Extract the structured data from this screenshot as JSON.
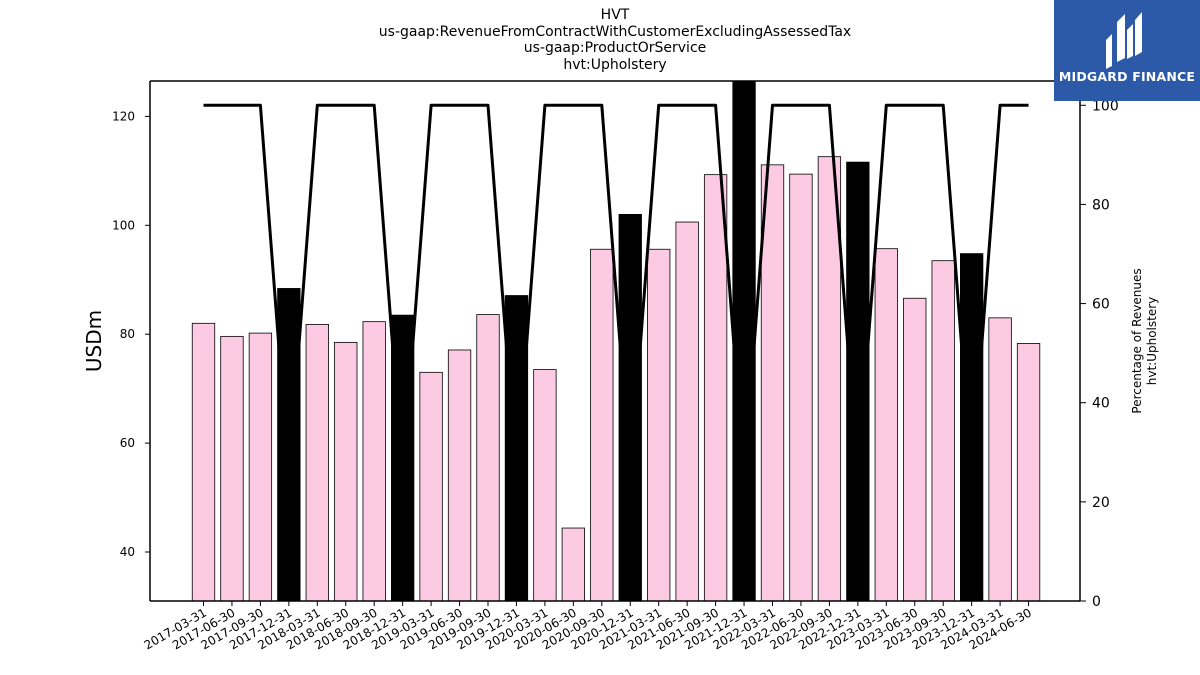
{
  "header": {
    "line1": "HVT",
    "line2": "us-gaap:RevenueFromContractWithCustomerExcludingAssessedTax",
    "line3": "us-gaap:ProductOrService",
    "line4": "hvt:Upholstery"
  },
  "logo": {
    "text": "MIDGARD FINANCE",
    "color": "#2c5aa8"
  },
  "chart_data": {
    "type": "bar",
    "title": "HVT us-gaap:RevenueFromContractWithCustomerExcludingAssessedTax us-gaap:ProductOrService hvt:Upholstery",
    "ylabel": "USDm",
    "y2label_line1": "Percentage of Revenues",
    "y2label_line2": "hvt:Upholstery",
    "ylim": [
      31,
      126.5
    ],
    "y2lim": [
      0,
      104.9
    ],
    "yticks": [
      40,
      60,
      80,
      100,
      120
    ],
    "y2ticks": [
      0,
      20,
      40,
      60,
      80,
      100
    ],
    "categories": [
      "2017-03-31",
      "2017-06-30",
      "2017-09-30",
      "2017-12-31",
      "2018-03-31",
      "2018-06-30",
      "2018-09-30",
      "2018-12-31",
      "2019-03-31",
      "2019-06-30",
      "2019-09-30",
      "2019-12-31",
      "2020-03-31",
      "2020-06-30",
      "2020-09-30",
      "2020-12-31",
      "2021-03-31",
      "2021-06-30",
      "2021-09-30",
      "2021-12-31",
      "2022-03-31",
      "2022-06-30",
      "2022-09-30",
      "2022-12-31",
      "2023-03-31",
      "2023-06-30",
      "2023-09-30",
      "2023-12-31",
      "2024-03-31",
      "2024-06-30"
    ],
    "series": [
      {
        "values": [
          82.0,
          79.6,
          80.2,
          88.4,
          81.8,
          78.5,
          82.3,
          83.5,
          73.0,
          77.1,
          83.6,
          87.1,
          73.5,
          44.4,
          95.6,
          102.0,
          95.6,
          100.6,
          109.3,
          126.5,
          111.1,
          109.4,
          112.6,
          111.6,
          95.7,
          86.6,
          93.5,
          94.8,
          83.0,
          78.3
        ],
        "colors": [
          "#fccae3",
          "#fccae3",
          "#fccae3",
          "#000000",
          "#fccae3",
          "#fccae3",
          "#fccae3",
          "#000000",
          "#fccae3",
          "#fccae3",
          "#fccae3",
          "#000000",
          "#fccae3",
          "#fccae3",
          "#fccae3",
          "#000000",
          "#fccae3",
          "#fccae3",
          "#fccae3",
          "#000000",
          "#fccae3",
          "#fccae3",
          "#fccae3",
          "#000000",
          "#fccae3",
          "#fccae3",
          "#fccae3",
          "#000000",
          "#fccae3",
          "#fccae3"
        ]
      },
      {
        "axis": "right",
        "type": "line",
        "color": "#000000",
        "values": [
          100,
          100,
          100,
          25,
          100,
          100,
          100,
          25,
          100,
          100,
          100,
          25,
          100,
          100,
          100,
          25,
          100,
          100,
          100,
          25,
          100,
          100,
          100,
          25,
          100,
          100,
          100,
          25,
          100,
          100
        ]
      }
    ],
    "grid": false,
    "legend": "none"
  }
}
